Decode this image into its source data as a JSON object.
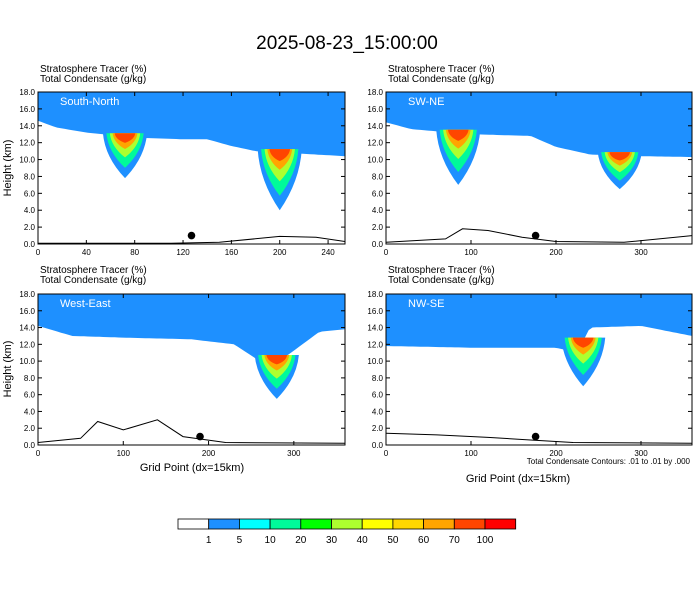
{
  "figure": {
    "title": "2025-08-23_15:00:00",
    "x_axis_label": "Grid Point (dx=15km)",
    "contour_note": "Total Condensate Contours: .01 to .01 by .000"
  },
  "colors": {
    "bands": [
      "#ffffff",
      "#1e90ff",
      "#00ffff",
      "#00fa9a",
      "#00ff00",
      "#adff2f",
      "#ffff00",
      "#ffd700",
      "#ffa500",
      "#ff4500",
      "#ff0000"
    ],
    "terrain_line": "#000000",
    "marker": "#000000"
  },
  "colorbar": {
    "labels": [
      "1",
      "5",
      "10",
      "20",
      "30",
      "40",
      "50",
      "60",
      "70",
      "100"
    ]
  },
  "chart_data": [
    {
      "type": "heatmap",
      "name": "South-North",
      "field1": "Stratosphere Tracer   (%)",
      "field2": "Total Condensate   (g/kg)",
      "ylabel": "Height (km)",
      "xlabel": "",
      "xlim": [
        0,
        254
      ],
      "ylim": [
        0,
        18
      ],
      "xticks": [
        0,
        40,
        80,
        120,
        160,
        200,
        240
      ],
      "yticks": [
        "0.0",
        "2.0",
        "4.0",
        "6.0",
        "8.0",
        "10.0",
        "12.0",
        "14.0",
        "16.0",
        "18.0"
      ],
      "marker_x": 127,
      "tracer_base_km": [
        [
          0,
          14.6
        ],
        [
          15,
          13.8
        ],
        [
          40,
          13.2
        ],
        [
          80,
          12.6
        ],
        [
          120,
          12.4
        ],
        [
          140,
          12.4
        ],
        [
          160,
          11.6
        ],
        [
          180,
          11.0
        ],
        [
          254,
          10.4
        ]
      ],
      "intrusions": [
        {
          "x": 72,
          "bottom_km": 7.8
        },
        {
          "x": 200,
          "bottom_km": 4.0
        }
      ],
      "terrain_km": [
        [
          0,
          0.1
        ],
        [
          110,
          0.1
        ],
        [
          150,
          0.2
        ],
        [
          200,
          0.9
        ],
        [
          230,
          0.8
        ],
        [
          254,
          0.3
        ]
      ]
    },
    {
      "type": "heatmap",
      "name": "SW-NE",
      "field1": "Stratosphere Tracer   (%)",
      "field2": "Total Condensate   (g/kg)",
      "ylabel": "",
      "xlabel": "",
      "xlim": [
        0,
        360
      ],
      "ylim": [
        0,
        18
      ],
      "xticks": [
        0,
        100,
        200,
        300
      ],
      "yticks": [
        "0.0",
        "2.0",
        "4.0",
        "6.0",
        "8.0",
        "10.0",
        "12.0",
        "14.0",
        "16.0",
        "18.0"
      ],
      "marker_x": 176,
      "tracer_base_km": [
        [
          0,
          14.4
        ],
        [
          30,
          13.6
        ],
        [
          100,
          13.0
        ],
        [
          170,
          12.8
        ],
        [
          200,
          11.5
        ],
        [
          240,
          10.6
        ],
        [
          300,
          10.4
        ],
        [
          360,
          10.3
        ]
      ],
      "intrusions": [
        {
          "x": 85,
          "bottom_km": 7.0
        },
        {
          "x": 275,
          "bottom_km": 6.5
        }
      ],
      "terrain_km": [
        [
          0,
          0.2
        ],
        [
          70,
          0.6
        ],
        [
          90,
          1.8
        ],
        [
          120,
          1.6
        ],
        [
          160,
          0.8
        ],
        [
          200,
          0.3
        ],
        [
          280,
          0.2
        ],
        [
          360,
          1.0
        ]
      ]
    },
    {
      "type": "heatmap",
      "name": "West-East",
      "field1": "Stratosphere Tracer   (%)",
      "field2": "Total Condensate   (g/kg)",
      "ylabel": "Height (km)",
      "xlabel": "Grid Point (dx=15km)",
      "xlim": [
        0,
        360
      ],
      "ylim": [
        0,
        18
      ],
      "xticks": [
        0,
        100,
        200,
        300
      ],
      "yticks": [
        "0.0",
        "2.0",
        "4.0",
        "6.0",
        "8.0",
        "10.0",
        "12.0",
        "14.0",
        "16.0",
        "18.0"
      ],
      "marker_x": 190,
      "tracer_base_km": [
        [
          0,
          14.2
        ],
        [
          40,
          13.0
        ],
        [
          100,
          12.8
        ],
        [
          180,
          12.6
        ],
        [
          230,
          12.0
        ],
        [
          260,
          10.0
        ],
        [
          290,
          10.5
        ],
        [
          330,
          13.5
        ],
        [
          360,
          13.8
        ]
      ],
      "intrusions": [
        {
          "x": 280,
          "bottom_km": 5.5
        }
      ],
      "terrain_km": [
        [
          0,
          0.3
        ],
        [
          50,
          0.8
        ],
        [
          70,
          2.8
        ],
        [
          100,
          1.8
        ],
        [
          140,
          3.0
        ],
        [
          170,
          1.0
        ],
        [
          220,
          0.3
        ],
        [
          360,
          0.2
        ]
      ]
    },
    {
      "type": "heatmap",
      "name": "NW-SE",
      "field1": "Stratosphere Tracer   (%)",
      "field2": "Total Condensate   (g/kg)",
      "ylabel": "",
      "xlabel": "Grid Point (dx=15km)",
      "xlim": [
        0,
        360
      ],
      "ylim": [
        0,
        18
      ],
      "xticks": [
        0,
        100,
        200,
        300
      ],
      "yticks": [
        "0.0",
        "2.0",
        "4.0",
        "6.0",
        "8.0",
        "10.0",
        "12.0",
        "14.0",
        "16.0",
        "18.0"
      ],
      "marker_x": 176,
      "tracer_base_km": [
        [
          0,
          11.8
        ],
        [
          100,
          11.6
        ],
        [
          200,
          11.6
        ],
        [
          225,
          11.0
        ],
        [
          240,
          14.0
        ],
        [
          300,
          14.2
        ],
        [
          360,
          13.0
        ]
      ],
      "intrusions": [
        {
          "x": 232,
          "bottom_km": 7.0
        }
      ],
      "terrain_km": [
        [
          0,
          1.4
        ],
        [
          60,
          1.2
        ],
        [
          120,
          0.9
        ],
        [
          170,
          0.6
        ],
        [
          220,
          0.3
        ],
        [
          360,
          0.2
        ]
      ]
    }
  ]
}
